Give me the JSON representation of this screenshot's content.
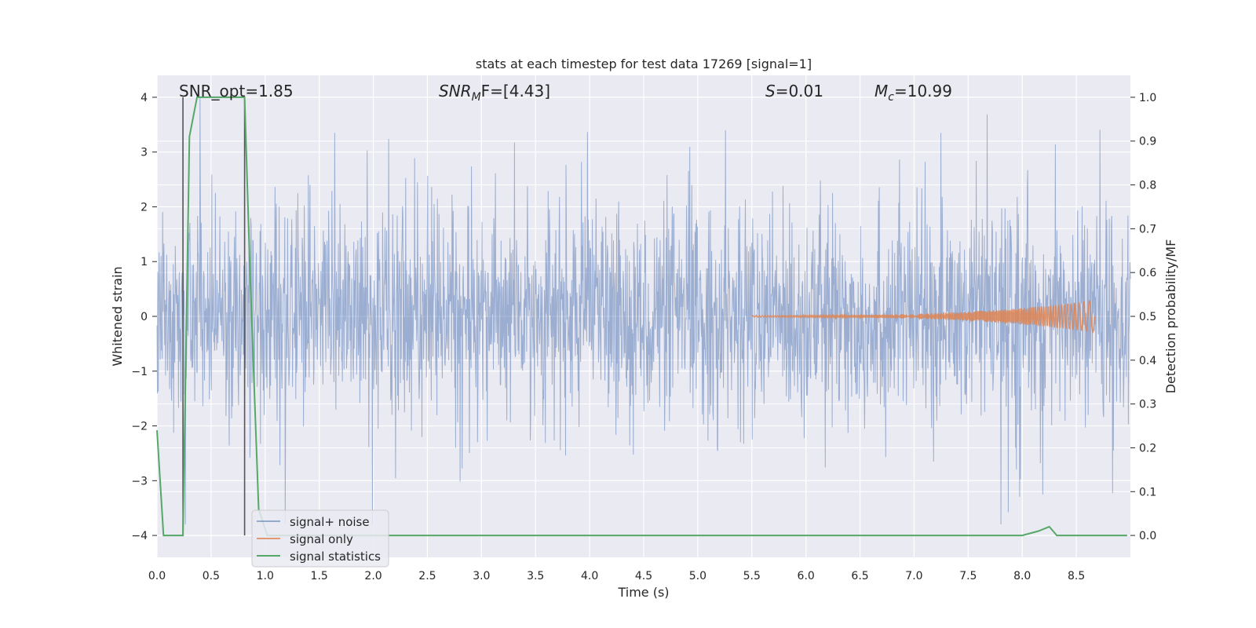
{
  "chart_data": {
    "type": "line",
    "title": "stats at each timestep for test data 17269 [signal=1]",
    "xlabel": "Time (s)",
    "ylabel": "Whitened strain",
    "y2label": "Detection probability/MF",
    "xlim": [
      0.0,
      9.0
    ],
    "ylim": [
      -4.4,
      4.4
    ],
    "y2lim": [
      -0.05,
      1.05
    ],
    "xticks": [
      "0.0",
      "0.5",
      "1.0",
      "1.5",
      "2.0",
      "2.5",
      "3.0",
      "3.5",
      "4.0",
      "4.5",
      "5.0",
      "5.5",
      "6.0",
      "6.5",
      "7.0",
      "7.5",
      "8.0",
      "8.5"
    ],
    "yticks": [
      "4",
      "3",
      "2",
      "1",
      "0",
      "−1",
      "−2",
      "−3",
      "−4"
    ],
    "y2ticks": [
      "1.0",
      "0.9",
      "0.8",
      "0.7",
      "0.6",
      "0.5",
      "0.4",
      "0.3",
      "0.2",
      "0.1",
      "0.0"
    ],
    "annotations": {
      "snr_opt": "SNR_opt=1.85",
      "snr_mf_main": "SNR",
      "snr_mf_sub": "M",
      "snr_mf_rest": "F=[4.43]",
      "s_label": "S",
      "s_value": "=0.01",
      "mc_main": "M",
      "mc_sub": "c",
      "mc_value": "=10.99"
    },
    "vlines": [
      0.24,
      0.81
    ],
    "legend": {
      "placement": "lower-left",
      "entries": [
        "signal+ noise",
        "signal only",
        "signal statistics"
      ]
    },
    "series": [
      {
        "name": "signal+ noise",
        "axis": "left",
        "kind": "noise",
        "color": "#4c72b0",
        "description_range": [
          -3.8,
          4.0
        ]
      },
      {
        "name": "signal only",
        "axis": "left",
        "kind": "chirp",
        "color": "#dd8452",
        "start": 5.5,
        "end": 8.67,
        "peak_amplitude": 0.28
      },
      {
        "name": "signal statistics",
        "axis": "right",
        "color": "#55a868",
        "x": [
          0.0,
          0.06,
          0.24,
          0.3,
          0.37,
          0.81,
          0.86,
          0.94,
          1.02,
          8.0,
          8.15,
          8.25,
          8.32,
          8.97
        ],
        "y": [
          0.24,
          0.0,
          0.0,
          0.91,
          1.0,
          1.0,
          0.6,
          0.06,
          0.0,
          0.0,
          0.01,
          0.02,
          0.0,
          0.0
        ]
      }
    ],
    "colors": {
      "background": "#eaeaf2",
      "grid": "#ffffff",
      "noise": "#4c72b0",
      "signal": "#dd8452",
      "stats": "#55a868",
      "vline": "#555555"
    }
  }
}
